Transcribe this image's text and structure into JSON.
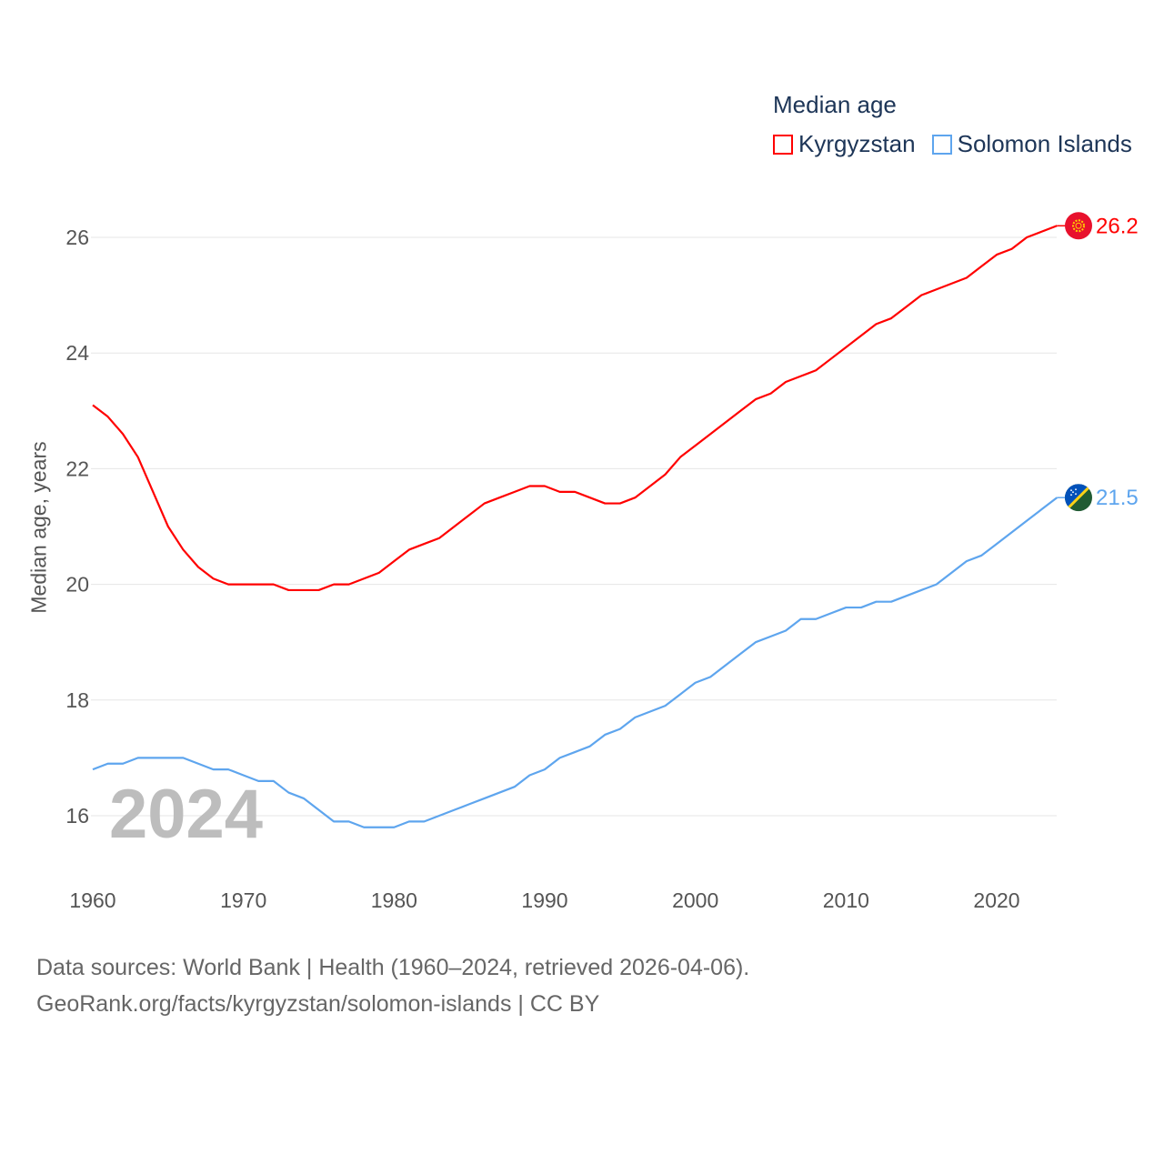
{
  "chart_data": {
    "type": "line",
    "title": "Median age",
    "ylabel": "Median age, years",
    "xlabel": "",
    "xlim": [
      1960,
      2024
    ],
    "ylim": [
      15,
      27
    ],
    "yticks": [
      16,
      18,
      20,
      22,
      24,
      26
    ],
    "xticks": [
      1960,
      1970,
      1980,
      1990,
      2000,
      2010,
      2020
    ],
    "grid": true,
    "legend_position": "top-right",
    "current_year": "2024",
    "x": [
      1960,
      1961,
      1962,
      1963,
      1964,
      1965,
      1966,
      1967,
      1968,
      1969,
      1970,
      1971,
      1972,
      1973,
      1974,
      1975,
      1976,
      1977,
      1978,
      1979,
      1980,
      1981,
      1982,
      1983,
      1984,
      1985,
      1986,
      1987,
      1988,
      1989,
      1990,
      1991,
      1992,
      1993,
      1994,
      1995,
      1996,
      1997,
      1998,
      1999,
      2000,
      2001,
      2002,
      2003,
      2004,
      2005,
      2006,
      2007,
      2008,
      2009,
      2010,
      2011,
      2012,
      2013,
      2014,
      2015,
      2016,
      2017,
      2018,
      2019,
      2020,
      2021,
      2022,
      2023,
      2024
    ],
    "series": [
      {
        "name": "Kyrgyzstan",
        "color": "#ff0000",
        "end_label": "26.2",
        "values": [
          23.1,
          22.9,
          22.6,
          22.2,
          21.6,
          21.0,
          20.6,
          20.3,
          20.1,
          20.0,
          20.0,
          20.0,
          20.0,
          19.9,
          19.9,
          19.9,
          20.0,
          20.0,
          20.1,
          20.2,
          20.4,
          20.6,
          20.7,
          20.8,
          21.0,
          21.2,
          21.4,
          21.5,
          21.6,
          21.7,
          21.7,
          21.6,
          21.6,
          21.5,
          21.4,
          21.4,
          21.5,
          21.7,
          21.9,
          22.2,
          22.4,
          22.6,
          22.8,
          23.0,
          23.2,
          23.3,
          23.5,
          23.6,
          23.7,
          23.9,
          24.1,
          24.3,
          24.5,
          24.6,
          24.8,
          25.0,
          25.1,
          25.2,
          25.3,
          25.5,
          25.7,
          25.8,
          26.0,
          26.1,
          26.2
        ]
      },
      {
        "name": "Solomon Islands",
        "color": "#5ea5ee",
        "end_label": "21.5",
        "values": [
          16.8,
          16.9,
          16.9,
          17.0,
          17.0,
          17.0,
          17.0,
          16.9,
          16.8,
          16.8,
          16.7,
          16.6,
          16.6,
          16.4,
          16.3,
          16.1,
          15.9,
          15.9,
          15.8,
          15.8,
          15.8,
          15.9,
          15.9,
          16.0,
          16.1,
          16.2,
          16.3,
          16.4,
          16.5,
          16.7,
          16.8,
          17.0,
          17.1,
          17.2,
          17.4,
          17.5,
          17.7,
          17.8,
          17.9,
          18.1,
          18.3,
          18.4,
          18.6,
          18.8,
          19.0,
          19.1,
          19.2,
          19.4,
          19.4,
          19.5,
          19.6,
          19.6,
          19.7,
          19.7,
          19.8,
          19.9,
          20.0,
          20.2,
          20.4,
          20.5,
          20.7,
          20.9,
          21.1,
          21.3,
          21.5
        ]
      }
    ]
  },
  "footer": {
    "line1": "Data sources: World Bank | Health (1960–2024, retrieved 2026-04-06).",
    "line2": "GeoRank.org/facts/kyrgyzstan/solomon-islands | CC BY"
  }
}
